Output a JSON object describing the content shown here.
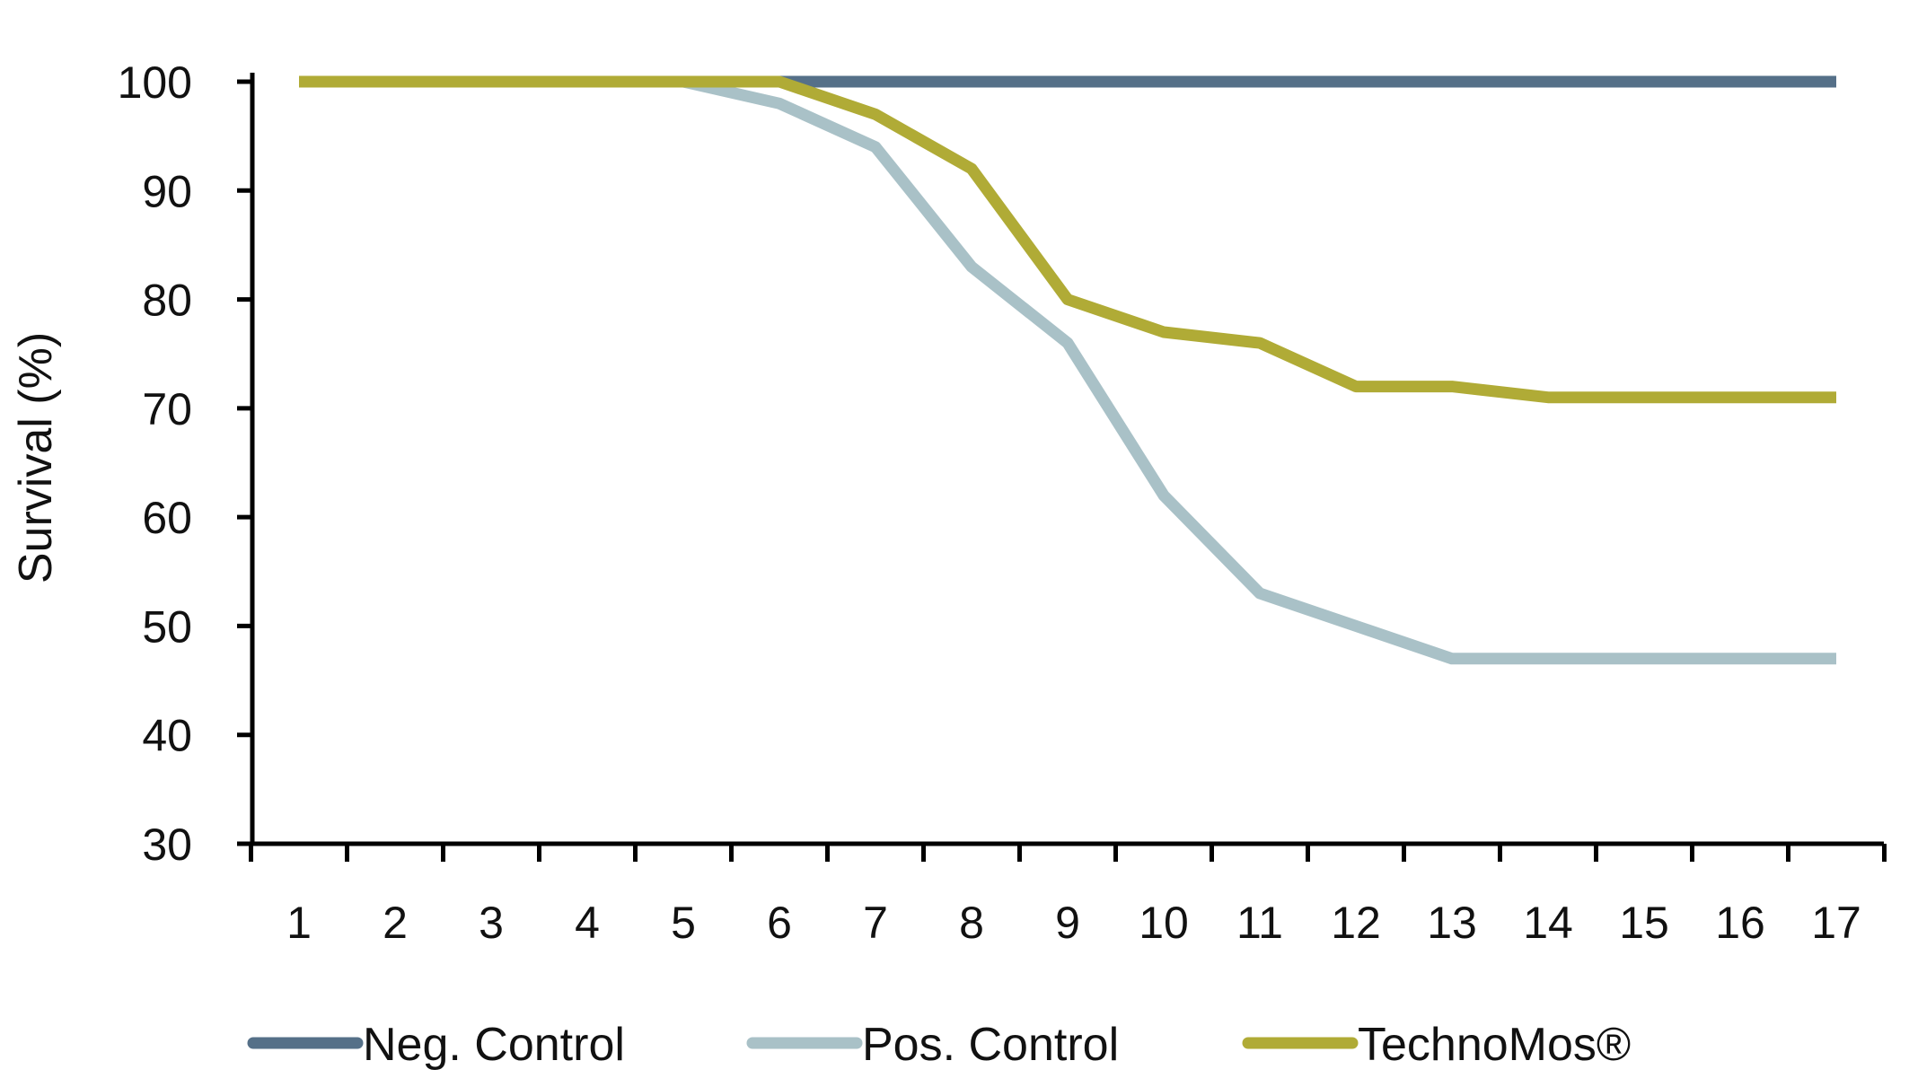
{
  "chart_data": {
    "type": "line",
    "title": "",
    "xlabel": "",
    "ylabel": "Survival (%)",
    "x": [
      1,
      2,
      3,
      4,
      5,
      6,
      7,
      8,
      9,
      10,
      11,
      12,
      13,
      14,
      15,
      16,
      17
    ],
    "ylim": [
      30,
      100
    ],
    "yticks": [
      30,
      40,
      50,
      60,
      70,
      80,
      90,
      100
    ],
    "grid": false,
    "legend_position": "bottom",
    "series": [
      {
        "name": "Neg. Control",
        "color": "#557088",
        "values": [
          100,
          100,
          100,
          100,
          100,
          100,
          100,
          100,
          100,
          100,
          100,
          100,
          100,
          100,
          100,
          100,
          100
        ]
      },
      {
        "name": "Pos. Control",
        "color": "#a9c1c7",
        "values": [
          100,
          100,
          100,
          100,
          100,
          98,
          94,
          83,
          76,
          62,
          53,
          50,
          47,
          47,
          47,
          47,
          47
        ]
      },
      {
        "name": "TechnoMos®",
        "color": "#b0ab36",
        "values": [
          100,
          100,
          100,
          100,
          100,
          100,
          97,
          92,
          80,
          77,
          76,
          72,
          72,
          71,
          71,
          71,
          71
        ]
      }
    ]
  }
}
